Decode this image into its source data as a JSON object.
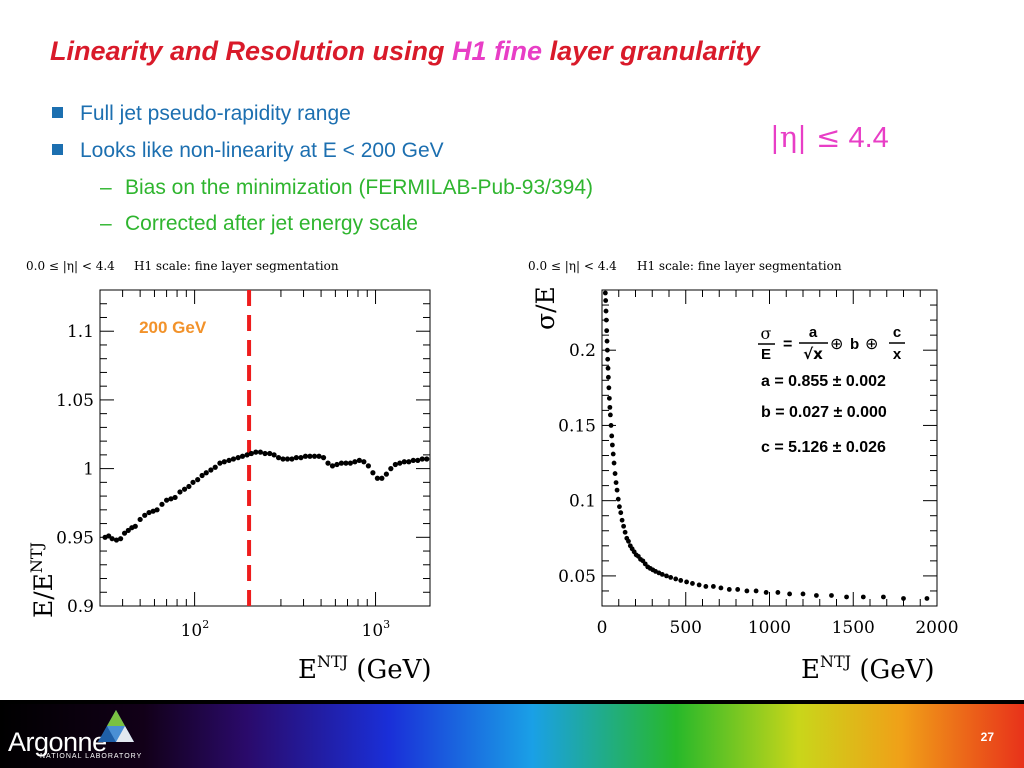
{
  "slide": {
    "title_part1": "Linearity and Resolution using ",
    "title_highlight": "H1 fine",
    "title_part2": " layer granularity",
    "bullets": [
      "Full jet pseudo-rapidity range",
      "Looks like non-linearity at E < 200 GeV"
    ],
    "subbullets": [
      "Bias on the minimization (FERMILAB-Pub-93/394)",
      "Corrected after jet energy scale"
    ],
    "dash": "–",
    "eta_symbol": "|η| ≤",
    "eta_value": " 4.4",
    "page_number": "27",
    "logo_text": "Argonne",
    "logo_subtext": "NATIONAL LABORATORY",
    "colors": {
      "title": "#d91a2a",
      "highlight": "#e83ec6",
      "bullet": "#1c6fb0",
      "subbullet": "#2fb52f",
      "cut_line": "#ee1c1c",
      "cut_label": "#f2922a"
    }
  },
  "chart_data": [
    {
      "type": "scatter",
      "header_left": "0.0 ≤ |η| < 4.4",
      "header_right": "H1 scale: fine layer segmentation",
      "xlabel": "E",
      "xlabel_sup": "NTJ",
      "xlabel_unit": " (GeV)",
      "ylabel": "E/E",
      "ylabel_sup": "NTJ",
      "xscale": "log",
      "xlim": [
        30,
        2000
      ],
      "ylim": [
        0.9,
        1.13
      ],
      "x_ticks": [
        {
          "value": 100,
          "base": "10",
          "exp": "2"
        },
        {
          "value": 1000,
          "base": "10",
          "exp": "3"
        }
      ],
      "y_ticks": [
        {
          "value": 0.9,
          "label": "0.9"
        },
        {
          "value": 0.95,
          "label": "0.95"
        },
        {
          "value": 1.0,
          "label": "1"
        },
        {
          "value": 1.05,
          "label": "1.05"
        },
        {
          "value": 1.1,
          "label": "1.1"
        }
      ],
      "cut_line": {
        "x": 200,
        "label": "200 GeV"
      },
      "x": [
        32,
        33.5,
        35,
        37,
        39,
        41,
        43,
        45,
        47,
        50,
        53,
        56,
        59,
        62,
        66,
        70,
        74,
        78,
        83,
        88,
        93,
        98,
        104,
        110,
        116,
        123,
        130,
        138,
        146,
        155,
        164,
        174,
        184,
        195,
        206,
        218,
        231,
        245,
        260,
        275,
        291,
        308,
        326,
        345,
        365,
        387,
        410,
        434,
        460,
        487,
        516,
        546,
        578,
        612,
        648,
        686,
        726,
        769,
        814,
        862,
        913,
        967,
        1024,
        1084,
        1148,
        1215,
        1287,
        1362,
        1442,
        1527,
        1617,
        1712,
        1812,
        1919
      ],
      "y": [
        0.95,
        0.951,
        0.949,
        0.948,
        0.949,
        0.953,
        0.955,
        0.957,
        0.958,
        0.963,
        0.966,
        0.968,
        0.969,
        0.97,
        0.974,
        0.977,
        0.978,
        0.979,
        0.983,
        0.985,
        0.987,
        0.99,
        0.992,
        0.995,
        0.997,
        0.999,
        1.001,
        1.004,
        1.005,
        1.006,
        1.007,
        1.008,
        1.009,
        1.01,
        1.011,
        1.012,
        1.012,
        1.011,
        1.011,
        1.01,
        1.008,
        1.007,
        1.007,
        1.007,
        1.008,
        1.008,
        1.009,
        1.009,
        1.009,
        1.009,
        1.008,
        1.004,
        1.002,
        1.003,
        1.004,
        1.004,
        1.004,
        1.005,
        1.006,
        1.005,
        1.002,
        0.997,
        0.993,
        0.993,
        0.996,
        1.0,
        1.003,
        1.004,
        1.005,
        1.005,
        1.006,
        1.006,
        1.007,
        1.007
      ]
    },
    {
      "type": "scatter",
      "header_left": "0.0 ≤ |η| < 4.4",
      "header_right": "H1 scale: fine layer segmentation",
      "xlabel": "E",
      "xlabel_sup": "NTJ",
      "xlabel_unit": " (GeV)",
      "ylabel": "σ/E",
      "xlim": [
        0,
        2000
      ],
      "ylim": [
        0.03,
        0.24
      ],
      "x_ticks": [
        {
          "value": 0,
          "label": "0"
        },
        {
          "value": 500,
          "label": "500"
        },
        {
          "value": 1000,
          "label": "1000"
        },
        {
          "value": 1500,
          "label": "1500"
        },
        {
          "value": 2000,
          "label": "2000"
        }
      ],
      "y_ticks": [
        {
          "value": 0.05,
          "label": "0.05"
        },
        {
          "value": 0.1,
          "label": "0.1"
        },
        {
          "value": 0.15,
          "label": "0.15"
        },
        {
          "value": 0.2,
          "label": "0.2"
        }
      ],
      "formula": {
        "lhs_num": "σ",
        "lhs_den": "E",
        "eq": "=",
        "a_num": "a",
        "a_den": "√x",
        "oplus1": "⊕",
        "b": "b",
        "oplus2": "⊕",
        "c_num": "c",
        "c_den": "x"
      },
      "params": [
        "a = 0.855 ± 0.002",
        "b = 0.027 ± 0.000",
        "c = 5.126 ± 0.026"
      ],
      "fit": {
        "a": 0.855,
        "b": 0.027,
        "c": 5.126
      },
      "x": [
        20,
        22,
        24,
        26,
        28,
        30,
        32,
        34,
        36,
        38,
        41,
        44,
        47,
        50,
        54,
        58,
        62,
        67,
        72,
        78,
        84,
        90,
        97,
        104,
        112,
        120,
        129,
        138,
        148,
        158,
        169,
        180,
        192,
        204,
        217,
        230,
        244,
        258,
        273,
        288,
        304,
        320,
        340,
        360,
        385,
        410,
        440,
        470,
        505,
        540,
        580,
        620,
        665,
        710,
        760,
        810,
        865,
        920,
        980,
        1050,
        1120,
        1200,
        1280,
        1370,
        1460,
        1560,
        1680,
        1800,
        1940
      ],
      "y": [
        0.238,
        0.233,
        0.226,
        0.22,
        0.213,
        0.206,
        0.2,
        0.194,
        0.188,
        0.182,
        0.175,
        0.168,
        0.162,
        0.157,
        0.15,
        0.143,
        0.137,
        0.131,
        0.125,
        0.118,
        0.112,
        0.107,
        0.101,
        0.096,
        0.092,
        0.087,
        0.083,
        0.079,
        0.075,
        0.073,
        0.07,
        0.068,
        0.066,
        0.064,
        0.063,
        0.061,
        0.06,
        0.058,
        0.056,
        0.055,
        0.054,
        0.053,
        0.052,
        0.051,
        0.05,
        0.049,
        0.048,
        0.047,
        0.046,
        0.045,
        0.044,
        0.043,
        0.043,
        0.042,
        0.041,
        0.041,
        0.04,
        0.04,
        0.039,
        0.039,
        0.038,
        0.038,
        0.037,
        0.037,
        0.036,
        0.036,
        0.036,
        0.035,
        0.035
      ]
    }
  ]
}
